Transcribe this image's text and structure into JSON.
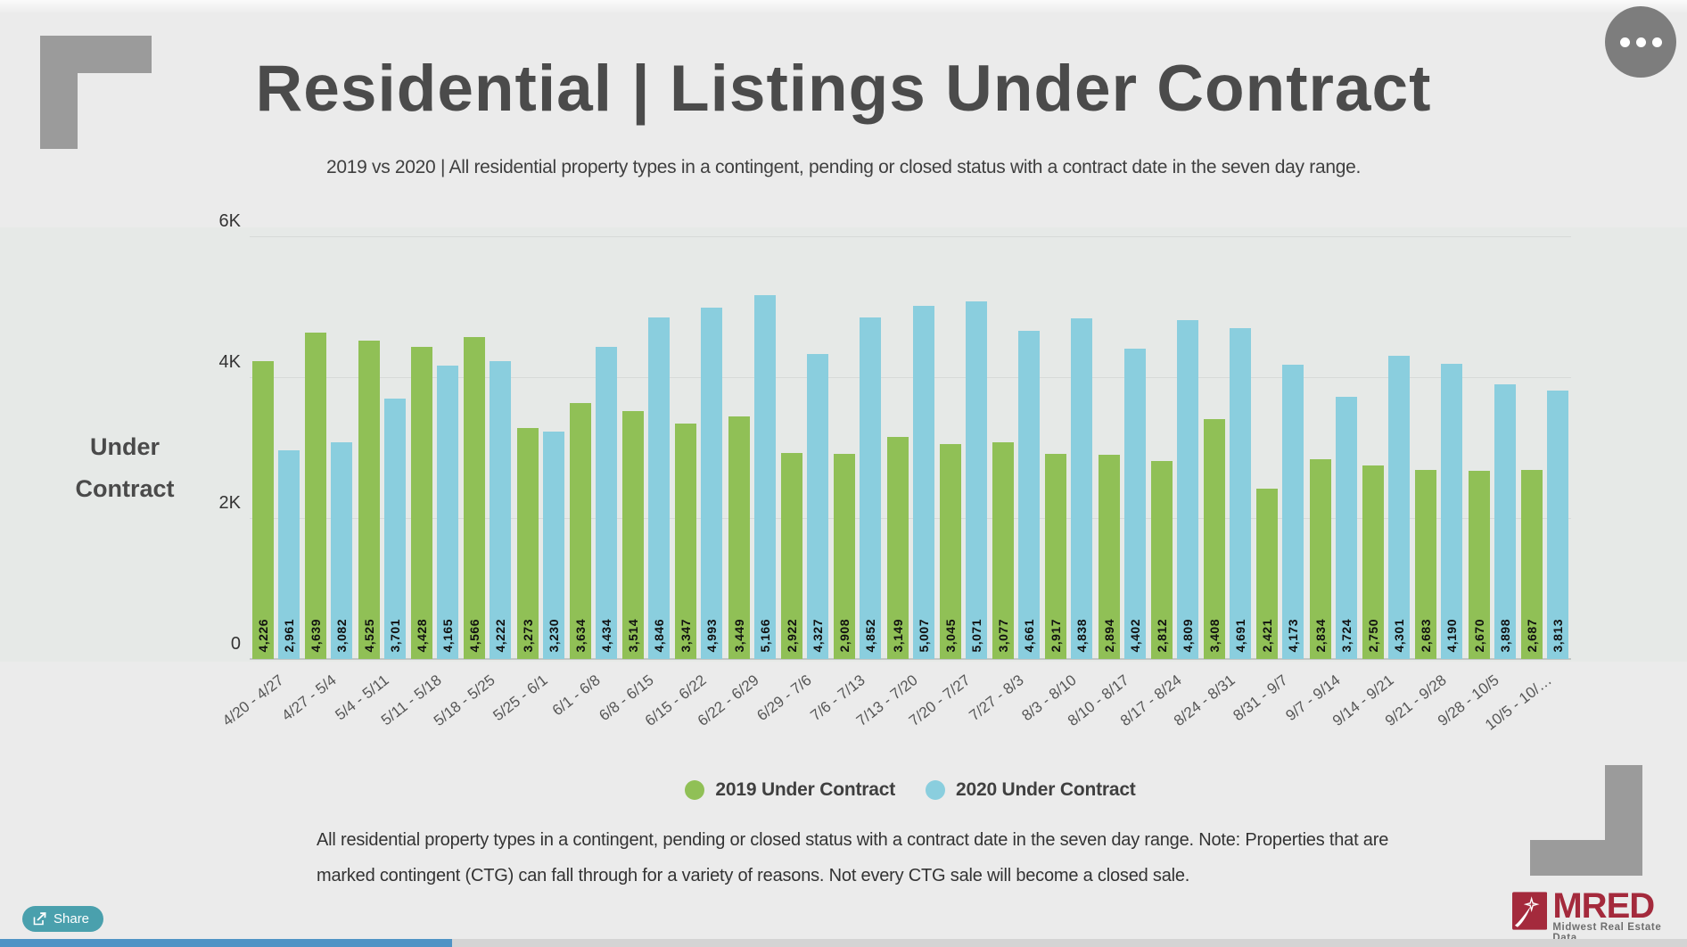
{
  "header": {
    "title": "Residential | Listings Under Contract",
    "subtitle": "2019 vs 2020 | All residential property types in a contingent, pending or closed status with a contract date in the seven day range."
  },
  "chart_data": {
    "type": "bar",
    "title": "Residential | Listings Under Contract",
    "subtitle": "2019 vs 2020 | All residential property types in a contingent, pending or closed status with a contract date in the seven day range.",
    "ylabel": "Under Contract",
    "ylabel_lines": {
      "line1": "Under",
      "line2": "Contract"
    },
    "ylim": [
      0,
      6000
    ],
    "yticks": [
      {
        "label": "0",
        "value": 0
      },
      {
        "label": "2K",
        "value": 2000
      },
      {
        "label": "4K",
        "value": 4000
      },
      {
        "label": "6K",
        "value": 6000
      }
    ],
    "grid": true,
    "legend_position": "bottom",
    "categories": [
      "4/20 - 4/27",
      "4/27 - 5/4",
      "5/4 - 5/11",
      "5/11 - 5/18",
      "5/18 - 5/25",
      "5/25 - 6/1",
      "6/1 - 6/8",
      "6/8 - 6/15",
      "6/15 - 6/22",
      "6/22 - 6/29",
      "6/29 - 7/6",
      "7/6 - 7/13",
      "7/13 - 7/20",
      "7/20 - 7/27",
      "7/27 - 8/3",
      "8/3 - 8/10",
      "8/10 - 8/17",
      "8/17 - 8/24",
      "8/24 - 8/31",
      "8/31 - 9/7",
      "9/7 - 9/14",
      "9/14 - 9/21",
      "9/21 - 9/28",
      "9/28 - 10/5",
      "10/5 - 10/…"
    ],
    "series": [
      {
        "name": "2019 Under Contract",
        "color": "#90c056",
        "values": [
          4226,
          4639,
          4525,
          4428,
          4566,
          3273,
          3634,
          3514,
          3347,
          3449,
          2922,
          2908,
          3149,
          3045,
          3077,
          2917,
          2894,
          2812,
          3408,
          2421,
          2834,
          2750,
          2683,
          2670,
          2687
        ]
      },
      {
        "name": "2020 Under Contract",
        "color": "#8acede",
        "values": [
          2961,
          3082,
          3701,
          4165,
          4222,
          3230,
          4434,
          4846,
          4993,
          5166,
          4327,
          4852,
          5007,
          5071,
          4661,
          4838,
          4402,
          4809,
          4691,
          4173,
          3724,
          4301,
          4190,
          3898,
          3813
        ]
      }
    ]
  },
  "footer": {
    "note_lines": [
      "All residential property types in a contingent, pending or closed status with a contract date in the seven day range. Note: Properties that are",
      "marked contingent (CTG) can fall through for a variety of reasons. Not every CTG sale will become a closed sale."
    ]
  },
  "share_button": {
    "label": "Share"
  },
  "menu_button": {
    "name": "more-options"
  },
  "logo": {
    "name": "MRED",
    "tagline": "Midwest Real Estate Data"
  },
  "colors": {
    "series_2019": "#90c056",
    "series_2020": "#8acede",
    "background": "#ebebeb",
    "plot_band": "#e6e9e7",
    "title_text": "#4b4b4b",
    "share_button": "#4aa0ad",
    "bottom_bar_fill": "#4f93c5",
    "logo_red": "#a42a3c",
    "corner_gray": "#9b9b9b"
  }
}
